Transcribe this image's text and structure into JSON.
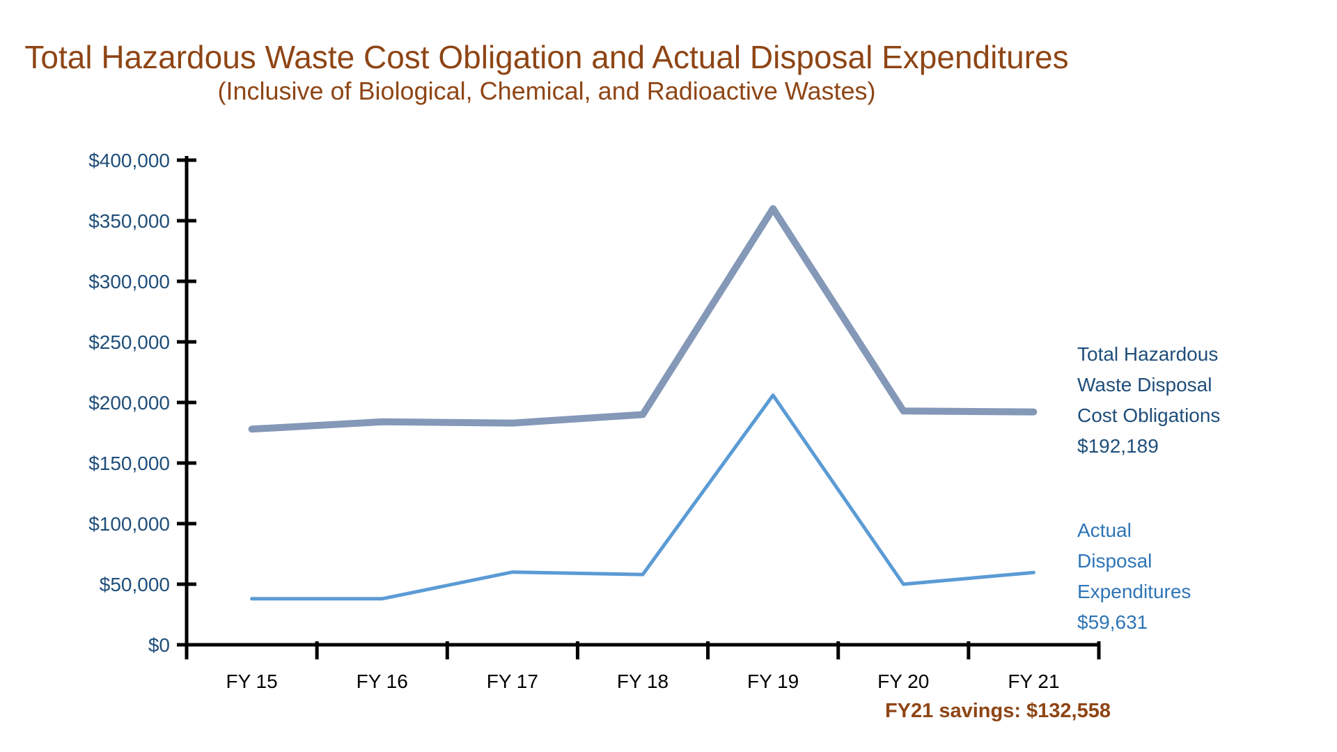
{
  "title": "Total Hazardous Waste Cost Obligation and Actual Disposal Expenditures",
  "subtitle": "(Inclusive of Biological, Chemical, and Radioactive Wastes)",
  "footnote": "FY21 savings: $132,558",
  "colors": {
    "title_brown": "#8E4515",
    "footnote_brown": "#8E4515",
    "obligations_line": "#8498B8",
    "obligations_text": "#1F4E79",
    "expenditures_line": "#5B9BD5",
    "expenditures_text": "#2E75B6",
    "axis_line": "#000000",
    "y_tick_label": "#1F4E79",
    "x_tick_label": "#000000",
    "background": "#FFFFFF"
  },
  "chart_data": {
    "type": "line",
    "categories": [
      "FY 15",
      "FY 16",
      "FY 17",
      "FY 18",
      "FY 19",
      "FY 20",
      "FY 21"
    ],
    "series": [
      {
        "name": "Total Hazardous Waste Disposal Cost Obligations",
        "values": [
          178000,
          184000,
          183000,
          190000,
          360000,
          193000,
          192189
        ],
        "color": "#8498B8",
        "stroke_width": 10,
        "label": "Total Hazardous\nWaste Disposal\nCost Obligations\n$192,189",
        "label_color": "#1F4E79",
        "final_value": "$192,189"
      },
      {
        "name": "Actual Disposal Expenditures",
        "values": [
          38000,
          38000,
          60000,
          58000,
          206000,
          50000,
          59631
        ],
        "color": "#5B9BD5",
        "stroke_width": 5,
        "label": "Actual\nDisposal\nExpenditures\n$59,631",
        "label_color": "#2E75B6",
        "final_value": "$59,631"
      }
    ],
    "xlabel": "",
    "ylabel": "",
    "ylim": [
      0,
      400000
    ],
    "ytick_step": 50000,
    "ytick_labels": [
      "$0",
      "$50,000",
      "$100,000",
      "$150,000",
      "$200,000",
      "$250,000",
      "$300,000",
      "$350,000",
      "$400,000"
    ],
    "grid": false,
    "legend_position": "right",
    "annotation": "FY21 savings: $132,558"
  }
}
